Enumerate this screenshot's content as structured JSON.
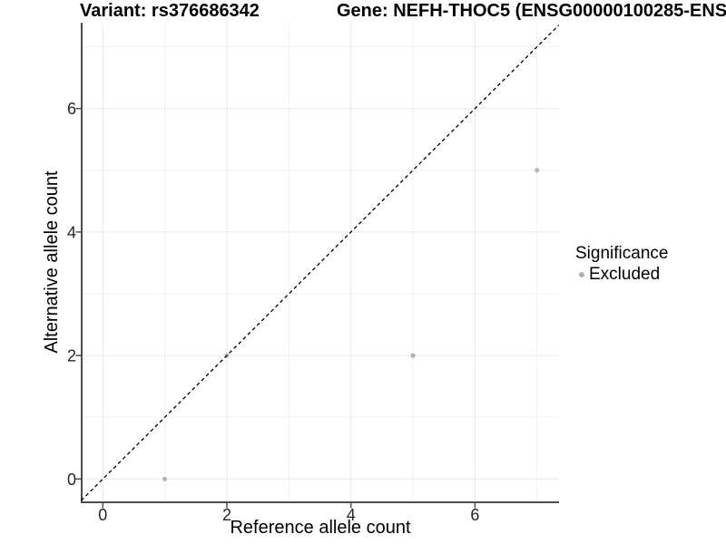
{
  "titles": {
    "left": "Variant: rs376686342",
    "right": "Gene: NEFH-THOC5 (ENSG00000100285-ENS"
  },
  "chart_data": {
    "type": "scatter",
    "title_left": "Variant: rs376686342",
    "title_right": "Gene: NEFH-THOC5 (ENSG00000100285-ENS",
    "xlabel": "Reference allele count",
    "ylabel": "Alternative allele count",
    "xlim": [
      -0.35,
      7.35
    ],
    "ylim": [
      -0.35,
      7.35
    ],
    "xticks": [
      0,
      2,
      4,
      6
    ],
    "yticks": [
      0,
      2,
      4,
      6
    ],
    "minor_xticks": [
      1,
      3,
      5,
      7
    ],
    "minor_yticks": [
      1,
      3,
      5,
      7
    ],
    "grid": true,
    "series": [
      {
        "name": "Excluded",
        "color": "#b3b3b3",
        "points": [
          [
            1,
            0
          ],
          [
            2,
            2
          ],
          [
            5,
            2
          ],
          [
            7,
            5
          ]
        ]
      }
    ],
    "reference_line": {
      "type": "identity",
      "style": "dashed",
      "color": "#000000"
    },
    "legend": {
      "position": "right",
      "title": "Significance",
      "items": [
        {
          "label": "Excluded",
          "color": "#b0b0b0"
        }
      ]
    },
    "colors": {
      "axis_line": "#4d4d4d",
      "tick_label": "#262626",
      "major_grid": "#e9e9e9",
      "minor_grid": "#f1f1f1"
    }
  }
}
